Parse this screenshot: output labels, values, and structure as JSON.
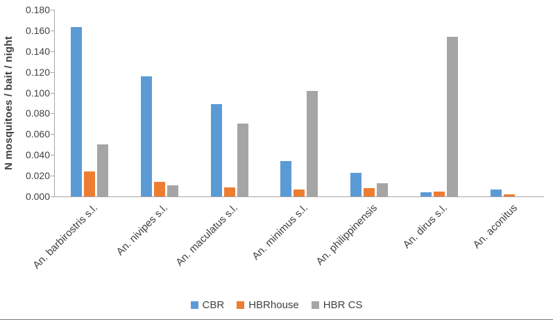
{
  "chart_data": {
    "type": "bar",
    "title": "",
    "ylabel": "N mosquitoes / bait / night",
    "xlabel": "",
    "ylim": [
      0,
      0.18
    ],
    "ytick_step": 0.02,
    "ytick_decimals": 3,
    "grid": false,
    "legend_position": "bottom",
    "categories": [
      "An. barbirostris s.l.",
      "An. nivipes s.l.",
      "An. maculatus s.l.",
      "An. minimus s.l.",
      "An. philippinensis",
      "An. dirus s.l.",
      "An. aconitus"
    ],
    "series": [
      {
        "name": "CBR",
        "color": "#5B9BD5",
        "values": [
          0.163,
          0.116,
          0.089,
          0.034,
          0.023,
          0.004,
          0.007
        ]
      },
      {
        "name": "HBRhouse",
        "color": "#ED7D31",
        "values": [
          0.024,
          0.014,
          0.009,
          0.007,
          0.008,
          0.005,
          0.002
        ]
      },
      {
        "name": "HBR CS",
        "color": "#A5A5A5",
        "values": [
          0.05,
          0.011,
          0.07,
          0.102,
          0.013,
          0.154,
          0.0
        ]
      }
    ]
  }
}
